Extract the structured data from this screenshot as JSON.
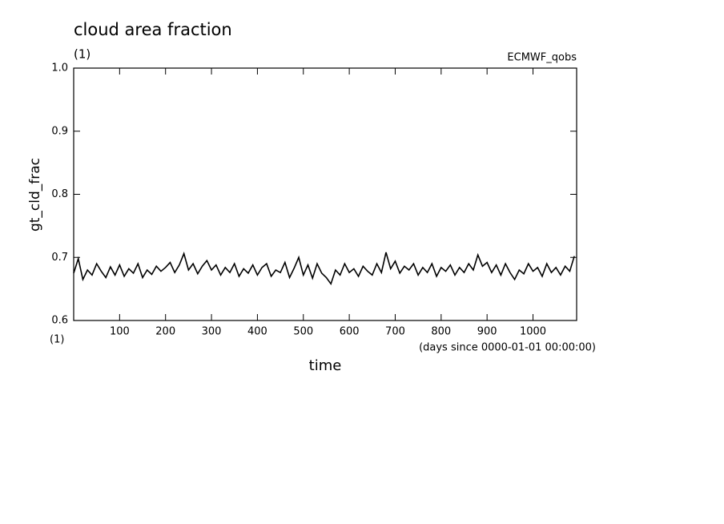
{
  "chart_data": {
    "type": "line",
    "title": "cloud area fraction",
    "subtitle": "(1)",
    "source_label": "ECMWF_qobs",
    "y_label": "gt_cld_frac",
    "x_label": "time",
    "x_unit_label": "(1)",
    "x_units": "(days since 0000-01-01 00:00:00)",
    "xlim": [
      0,
      1095
    ],
    "ylim": [
      0.6,
      1.0
    ],
    "xticks": [
      100,
      200,
      300,
      400,
      500,
      600,
      700,
      800,
      900,
      1000
    ],
    "yticks": [
      0.6,
      0.7,
      0.8,
      0.9,
      {
        "value": 1,
        "label": "1.0"
      }
    ],
    "x": [
      0,
      10,
      20,
      30,
      40,
      50,
      60,
      70,
      80,
      90,
      100,
      110,
      120,
      130,
      140,
      150,
      160,
      170,
      180,
      190,
      200,
      210,
      220,
      230,
      240,
      250,
      260,
      270,
      280,
      290,
      300,
      310,
      320,
      330,
      340,
      350,
      360,
      370,
      380,
      390,
      400,
      410,
      420,
      430,
      440,
      450,
      460,
      470,
      480,
      490,
      500,
      510,
      520,
      530,
      540,
      550,
      560,
      570,
      580,
      590,
      600,
      610,
      620,
      630,
      640,
      650,
      660,
      670,
      680,
      690,
      700,
      710,
      720,
      730,
      740,
      750,
      760,
      770,
      780,
      790,
      800,
      810,
      820,
      830,
      840,
      850,
      860,
      870,
      880,
      890,
      900,
      910,
      920,
      930,
      940,
      950,
      960,
      970,
      980,
      990,
      1000,
      1010,
      1020,
      1030,
      1040,
      1050,
      1060,
      1070,
      1080,
      1090
    ],
    "series": [
      {
        "name": "gt_cld_frac",
        "color": "#000000",
        "values": [
          0.675,
          0.698,
          0.665,
          0.68,
          0.672,
          0.69,
          0.678,
          0.668,
          0.685,
          0.672,
          0.688,
          0.67,
          0.682,
          0.675,
          0.69,
          0.668,
          0.68,
          0.673,
          0.686,
          0.678,
          0.684,
          0.692,
          0.676,
          0.688,
          0.706,
          0.68,
          0.69,
          0.674,
          0.686,
          0.695,
          0.68,
          0.688,
          0.672,
          0.684,
          0.676,
          0.69,
          0.67,
          0.682,
          0.675,
          0.688,
          0.672,
          0.684,
          0.69,
          0.67,
          0.68,
          0.676,
          0.692,
          0.668,
          0.683,
          0.7,
          0.672,
          0.688,
          0.667,
          0.69,
          0.675,
          0.668,
          0.658,
          0.68,
          0.672,
          0.69,
          0.676,
          0.682,
          0.67,
          0.686,
          0.678,
          0.672,
          0.69,
          0.676,
          0.708,
          0.682,
          0.694,
          0.675,
          0.686,
          0.68,
          0.69,
          0.672,
          0.684,
          0.676,
          0.69,
          0.67,
          0.684,
          0.678,
          0.688,
          0.672,
          0.684,
          0.676,
          0.69,
          0.68,
          0.704,
          0.686,
          0.692,
          0.676,
          0.688,
          0.672,
          0.69,
          0.676,
          0.665,
          0.68,
          0.674,
          0.69,
          0.678,
          0.684,
          0.67,
          0.69,
          0.676,
          0.684,
          0.672,
          0.686,
          0.678,
          0.702
        ]
      }
    ]
  }
}
